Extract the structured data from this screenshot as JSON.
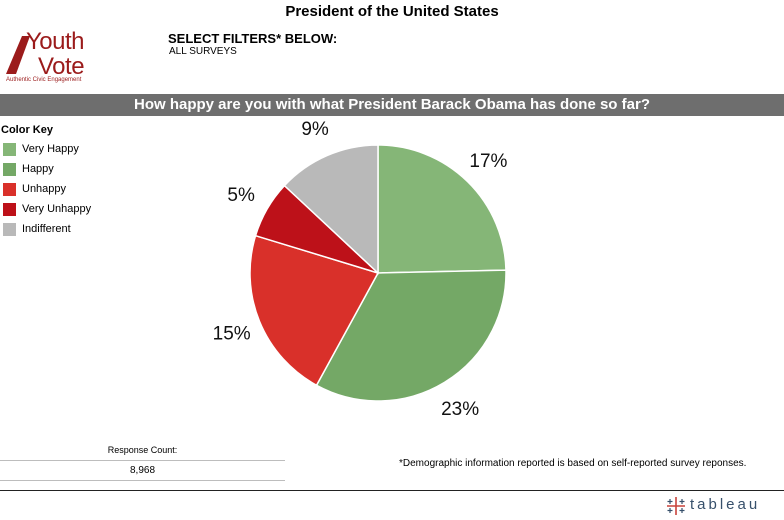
{
  "header": {
    "title": "President of the United States",
    "filters_heading": "SELECT FILTERS* BELOW:",
    "filters_value": "ALL SURVEYS"
  },
  "logo": {
    "line1": "Youth",
    "line2": "Vote",
    "tagline": "Authentic Civic Engagement",
    "color": "#9b1b1b"
  },
  "question": "How happy are you with what President Barack Obama has done so far?",
  "color_key": {
    "title": "Color Key",
    "items": [
      {
        "label": "Very Happy",
        "color": "#85b677"
      },
      {
        "label": "Happy",
        "color": "#74a866"
      },
      {
        "label": "Unhappy",
        "color": "#d9302a"
      },
      {
        "label": "Very Unhappy",
        "color": "#bd1119"
      },
      {
        "label": "Indifferent",
        "color": "#b9b9b9"
      }
    ]
  },
  "chart_data": {
    "type": "pie",
    "title": "",
    "slices": [
      {
        "name": "Very Happy",
        "label": "17%",
        "value": 17,
        "color": "#85b677"
      },
      {
        "name": "Happy",
        "label": "23%",
        "value": 23,
        "color": "#74a866"
      },
      {
        "name": "Unhappy",
        "label": "15%",
        "value": 15,
        "color": "#d9302a"
      },
      {
        "name": "Very Unhappy",
        "label": "5%",
        "value": 5,
        "color": "#bd1119"
      },
      {
        "name": "Indifferent",
        "label": "9%",
        "value": 9,
        "color": "#b9b9b9"
      }
    ]
  },
  "response": {
    "label": "Response Count:",
    "value": "8,968"
  },
  "footnote": "*Demographic information reported is based on self-reported survey reponses.",
  "brand": {
    "name": "tableau",
    "color": "#37506b"
  }
}
